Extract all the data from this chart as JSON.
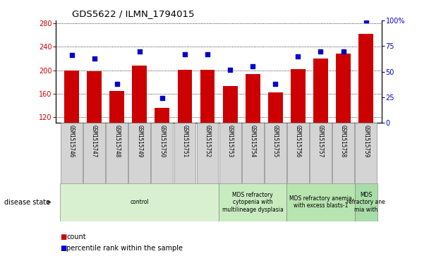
{
  "title": "GDS5622 / ILMN_1794015",
  "samples": [
    "GSM1515746",
    "GSM1515747",
    "GSM1515748",
    "GSM1515749",
    "GSM1515750",
    "GSM1515751",
    "GSM1515752",
    "GSM1515753",
    "GSM1515754",
    "GSM1515755",
    "GSM1515756",
    "GSM1515757",
    "GSM1515758",
    "GSM1515759"
  ],
  "counts": [
    200,
    198,
    165,
    208,
    135,
    201,
    201,
    173,
    193,
    162,
    202,
    220,
    228,
    262
  ],
  "percentile_ranks": [
    66,
    63,
    38,
    70,
    24,
    67,
    67,
    52,
    55,
    38,
    65,
    70,
    70,
    100
  ],
  "ylim_left": [
    110,
    285
  ],
  "ylim_right": [
    0,
    100
  ],
  "yticks_left": [
    120,
    160,
    200,
    240,
    280
  ],
  "yticks_right": [
    0,
    25,
    50,
    75,
    100
  ],
  "bar_color": "#cc0000",
  "dot_color": "#0000cc",
  "sample_box_color": "#d4d4d4",
  "disease_groups": [
    {
      "label": "control",
      "start": 0,
      "end": 7,
      "color": "#d8f0d0"
    },
    {
      "label": "MDS refractory\ncytopenia with\nmultilineage dysplasia",
      "start": 7,
      "end": 10,
      "color": "#c8ecc0"
    },
    {
      "label": "MDS refractory anemia\nwith excess blasts-1",
      "start": 10,
      "end": 13,
      "color": "#b8e4b0"
    },
    {
      "label": "MDS\nrefractory ane\nmia with",
      "start": 13,
      "end": 14,
      "color": "#a8dca8"
    }
  ],
  "disease_state_label": "disease state",
  "legend_count_label": "count",
  "legend_percentile_label": "percentile rank within the sample",
  "bar_color_hex": "#cc0000",
  "dot_color_hex": "#0000cc"
}
